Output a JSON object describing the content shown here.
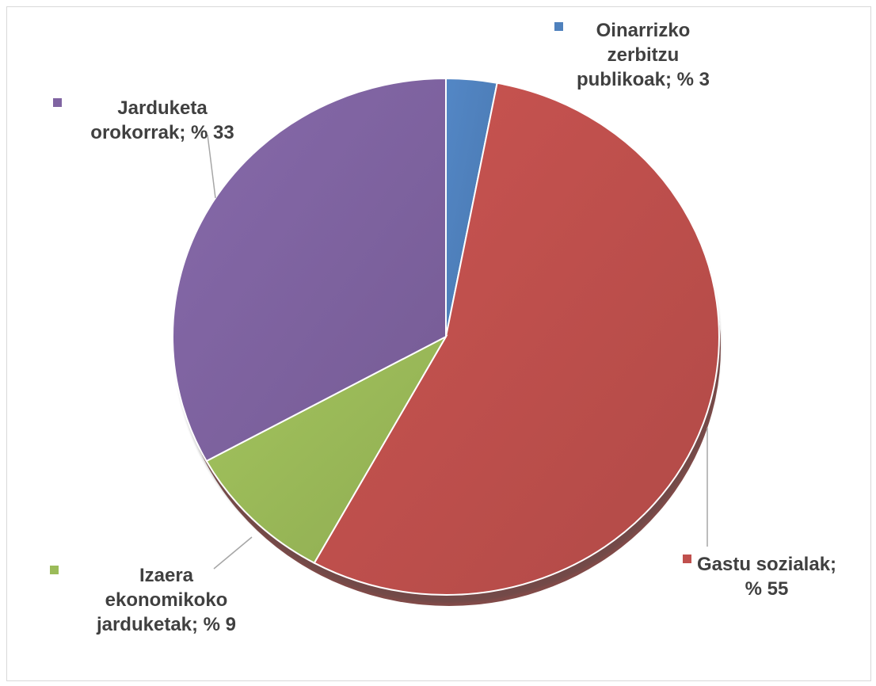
{
  "chart_data": {
    "type": "pie",
    "title": "",
    "start_angle_deg": 0,
    "direction": "clockwise",
    "slices": [
      {
        "name": "Oinarrizko zerbitzu publikoak",
        "value": 3,
        "label_lines": [
          "Oinarrizko",
          "zerbitzu",
          "publikoak; % 3"
        ],
        "color": "#4F81BD"
      },
      {
        "name": "Gastu sozialak",
        "value": 55,
        "label_lines": [
          "Gastu sozialak;",
          "% 55"
        ],
        "color": "#C0504D"
      },
      {
        "name": "Izaera ekonomikoko jarduketak",
        "value": 9,
        "label_lines": [
          "Izaera",
          "ekonomikoko",
          "jarduketak; % 9"
        ],
        "color": "#9BBB59"
      },
      {
        "name": "Jarduketa orokorrak",
        "value": 33,
        "label_lines": [
          "Jarduketa",
          "orokorrak; % 33"
        ],
        "color": "#8064A2"
      }
    ]
  }
}
